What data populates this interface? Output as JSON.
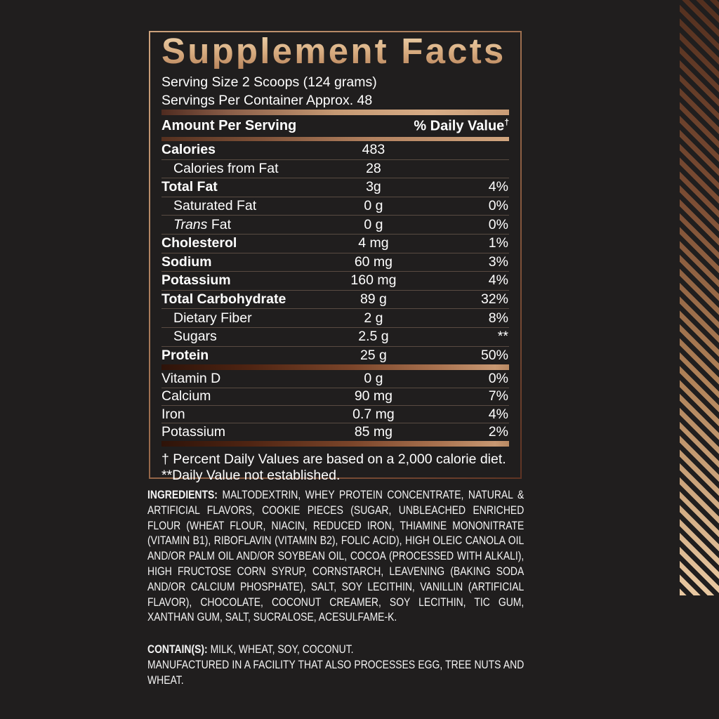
{
  "theme": {
    "page_background": "#201e1e",
    "accent_copper": "#c49a74",
    "title_tan": "#d8ac80",
    "stripe_top_color": "#54301f",
    "stripe_bottom_color": "#e9c9a2",
    "bar_dark_left": "#2e1309",
    "text_color": "#ffffff"
  },
  "panel": {
    "title": "Supplement Facts",
    "serving_size": "Serving Size 2 Scoops (124 grams)",
    "servings_per_container": "Servings Per Container Approx. 48",
    "amount_per_serving_label": "Amount Per Serving",
    "daily_value_label": "% Daily Value",
    "daily_value_dagger": "†",
    "rows": [
      {
        "label": "Calories",
        "amount": "483",
        "dv": "",
        "bold": true
      },
      {
        "label": "Calories from Fat",
        "amount": "28",
        "dv": "",
        "indent": true
      },
      {
        "label": "Total Fat",
        "amount": "3g",
        "dv": "4%",
        "bold": true
      },
      {
        "label": "Saturated Fat",
        "amount": "0 g",
        "dv": "0%",
        "indent": true
      },
      {
        "label_italic": "Trans",
        "label": " Fat",
        "amount": "0 g",
        "dv": "0%",
        "indent": true
      },
      {
        "label": "Cholesterol",
        "amount": "4 mg",
        "dv": "1%",
        "bold": true
      },
      {
        "label": "Sodium",
        "amount": "60 mg",
        "dv": "3%",
        "bold": true
      },
      {
        "label": "Potassium",
        "amount": "160 mg",
        "dv": "4%",
        "bold": true
      },
      {
        "label": "Total Carbohydrate",
        "amount": "89 g",
        "dv": "32%",
        "bold": true
      },
      {
        "label": "Dietary Fiber",
        "amount": "2 g",
        "dv": "8%",
        "indent": true
      },
      {
        "label": "Sugars",
        "amount": "2.5 g",
        "dv": "**",
        "indent": true
      },
      {
        "label": "Protein",
        "amount": "25 g",
        "dv": "50%",
        "bold": true,
        "last": true
      }
    ],
    "vitamins": [
      {
        "label": "Vitamin D",
        "amount": "0 g",
        "dv": "0%"
      },
      {
        "label": "Calcium",
        "amount": "90 mg",
        "dv": "7%"
      },
      {
        "label": "Iron",
        "amount": "0.7 mg",
        "dv": "4%"
      },
      {
        "label": "Potassium",
        "amount": "85 mg",
        "dv": "2%",
        "last": true
      }
    ],
    "footnotes": [
      "† Percent Daily Values are based on a 2,000 calorie diet.",
      "**Daily Value not established."
    ]
  },
  "ingredients": {
    "label": "INGREDIENTS:",
    "text": "MALTODEXTRIN, WHEY PROTEIN CONCENTRATE, NATURAL & ARTIFICIAL FLAVORS, COOKIE PIECES (SUGAR, UNBLEACHED ENRICHED FLOUR (WHEAT FLOUR, NIACIN, REDUCED IRON, THIAMINE MONONITRATE (VITAMIN B1), RIBOFLAVIN (VITAMIN B2), FOLIC ACID), HIGH OLEIC CANOLA OIL AND/OR PALM OIL AND/OR SOYBEAN OIL, COCOA (PROCESSED WITH ALKALI), HIGH FRUCTOSE CORN SYRUP, CORNSTARCH, LEAVENING (BAKING SODA AND/OR CALCIUM PHOSPHATE), SALT, SOY LECITHIN, VANILLIN (ARTIFICIAL FLAVOR), CHOCOLATE, COCONUT CREAMER, SOY LECITHIN, TIC GUM, XANTHAN GUM, SALT, SUCRALOSE, ACESULFAME-K."
  },
  "contains": {
    "label": "CONTAIN(S):",
    "text": "MILK, WHEAT, SOY, COCONUT.",
    "manufactured": "MANUFACTURED IN A FACILITY THAT ALSO PROCESSES EGG, TREE NUTS AND WHEAT."
  }
}
